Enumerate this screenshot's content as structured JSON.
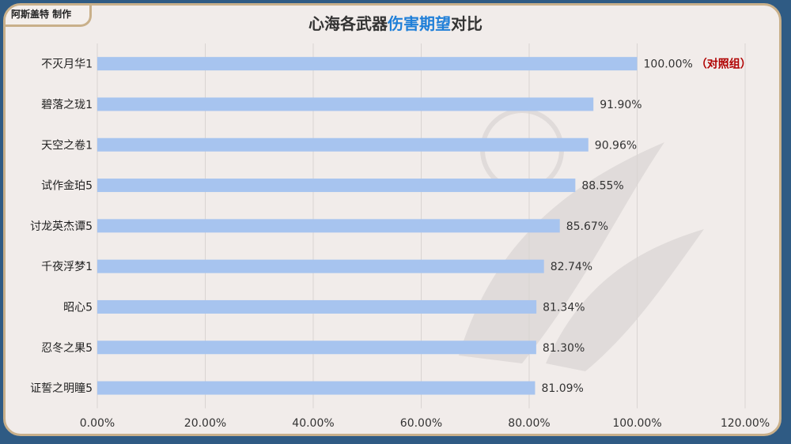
{
  "credit": "阿斯盖特 制作",
  "title": {
    "prefix": "心海各武器",
    "highlight": "伤害期望",
    "suffix": "对比"
  },
  "colors": {
    "background": "#2f5b84",
    "card": "#f1ecea",
    "border": "#c9b08a",
    "bar": "#a7c4ef",
    "title_highlight": "#1f7fd8",
    "reference_note": "#b00000"
  },
  "chart_data": {
    "type": "bar",
    "orientation": "horizontal",
    "categories": [
      "不灭月华1",
      "碧落之珑1",
      "天空之卷1",
      "试作金珀5",
      "讨龙英杰谭5",
      "千夜浮梦1",
      "昭心5",
      "忍冬之果5",
      "证誓之明瞳5"
    ],
    "values": [
      100.0,
      91.9,
      90.96,
      88.55,
      85.67,
      82.74,
      81.34,
      81.3,
      81.09
    ],
    "value_labels": [
      "100.00%",
      "91.90%",
      "90.96%",
      "88.55%",
      "85.67%",
      "82.74%",
      "81.34%",
      "81.30%",
      "81.09%"
    ],
    "annotations": [
      {
        "category": "不灭月华1",
        "text": "（对照组）"
      }
    ],
    "x_ticks": [
      "0.00%",
      "20.00%",
      "40.00%",
      "60.00%",
      "80.00%",
      "100.00%",
      "120.00%"
    ],
    "xlim": [
      0,
      120
    ],
    "grid": "vertical",
    "legend": "none"
  }
}
